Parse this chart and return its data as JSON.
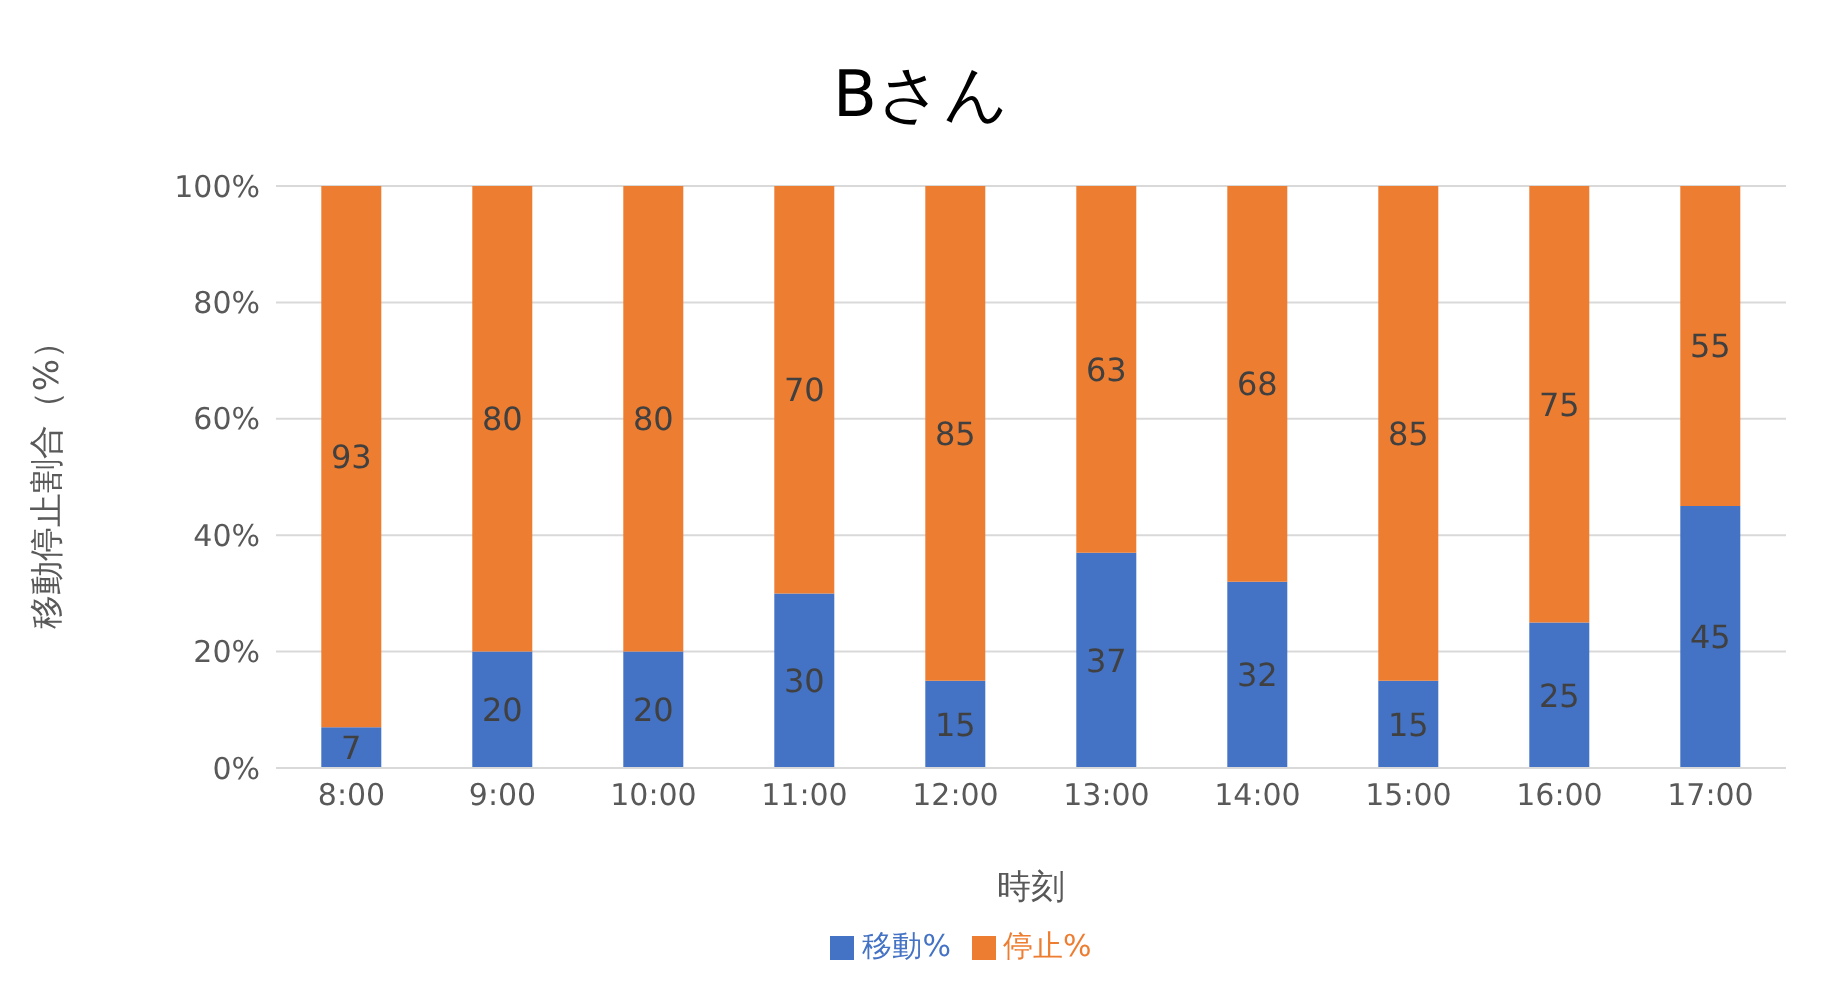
{
  "chart_data": {
    "type": "bar",
    "title": "Bさん",
    "xlabel": "時刻",
    "ylabel": "移動停止割合（%）",
    "categories": [
      "8:00",
      "9:00",
      "10:00",
      "11:00",
      "12:00",
      "13:00",
      "14:00",
      "15:00",
      "16:00",
      "17:00"
    ],
    "series": [
      {
        "name": "移動%",
        "color": "#4472c4",
        "values": [
          7,
          20,
          20,
          30,
          15,
          37,
          32,
          15,
          25,
          45
        ]
      },
      {
        "name": "停止%",
        "color": "#ed7d31",
        "values": [
          93,
          80,
          80,
          70,
          85,
          63,
          68,
          85,
          75,
          55
        ]
      }
    ],
    "stacked": true,
    "data_labels": true,
    "ylim": [
      0,
      100
    ],
    "yticks": [
      {
        "value": 0,
        "label": "0%"
      },
      {
        "value": 20,
        "label": "20%"
      },
      {
        "value": 40,
        "label": "40%"
      },
      {
        "value": 60,
        "label": "60%"
      },
      {
        "value": 80,
        "label": "80%"
      },
      {
        "value": 100,
        "label": "100%"
      }
    ],
    "grid": "y",
    "legend": "bottom"
  }
}
